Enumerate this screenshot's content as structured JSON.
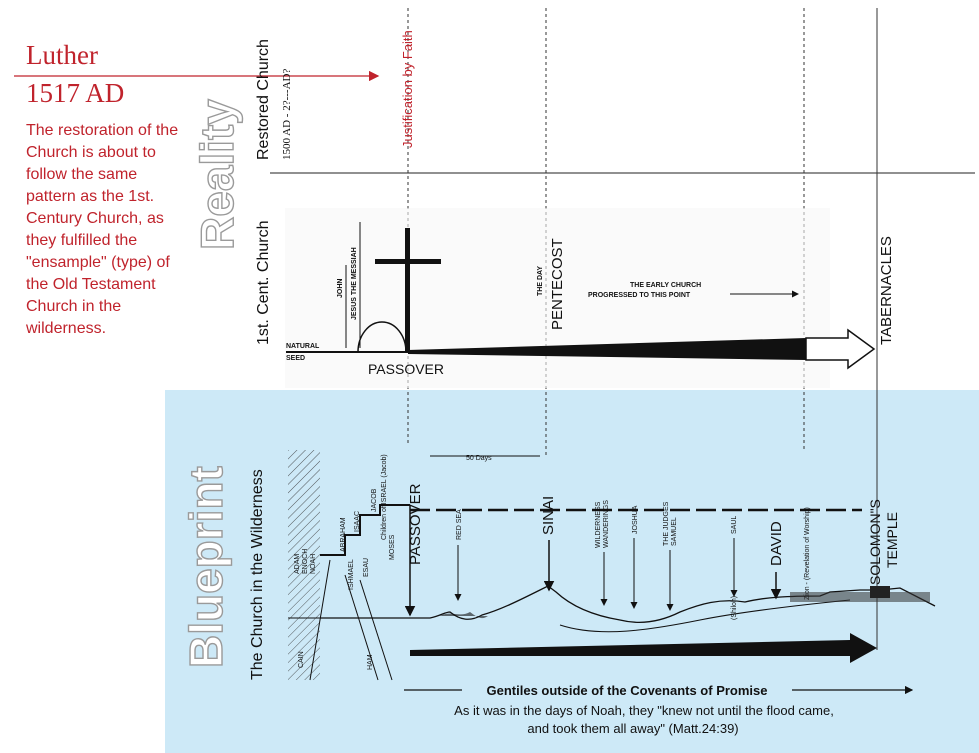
{
  "luther": {
    "name": "Luther",
    "year": "1517 AD"
  },
  "body_text": "The restoration of the Church is about to follow the same pattern as the 1st. Century Church, as they fulfilled the \"ensample\" (type) of the Old Testament Church in the wilderness.",
  "reality": {
    "heading": "Reality",
    "restored_church": "Restored Church",
    "restored_sub": "1500 AD - 2?---AD?",
    "first_cent": "1st. Cent. Church",
    "justification": "Justification by Faith",
    "natural": "NATURAL",
    "seed": "SEED",
    "john": "JOHN",
    "jesus": "JESUS THE MESSIAH",
    "passover": "PASSOVER",
    "the_day": "THE DAY",
    "pentecost": "PENTECOST",
    "early_church_1": "THE EARLY CHURCH",
    "early_church_2": "PROGRESSED TO THIS POINT",
    "tabernacles": "TABERNACLES"
  },
  "blueprint": {
    "heading": "Blueprint",
    "subtitle": "The Church in the Wilderness",
    "adam": "ADAM",
    "enoch": "ENOCH",
    "noah": "NOAH",
    "abraham": "ABRAHAM",
    "isaac": "ISAAC",
    "jacob": "JACOB",
    "ishmael": "ISHMAEL",
    "esau": "ESAU",
    "cain": "CAIN",
    "ham": "HAM",
    "children_israel": "Children of ISRAEL (Jacob)",
    "moses": "MOSES",
    "passover": "PASSOVER",
    "fifty_days": "50 Days",
    "red_sea": "RED SEA",
    "sinai": "SINAI",
    "wilderness": "WILDERNESS",
    "wanderings": "WANDERINGS",
    "joshua": "JOSHUA",
    "judges": "THE JUDGES",
    "samuel": "SAMUEL",
    "saul": "SAUL",
    "shiloh": "(Shiloh)",
    "david": "DAVID",
    "zion": "Zion - (Revelation of Worship)",
    "solomon_1": "SOLOMON\"S",
    "solomon_2": "TEMPLE"
  },
  "gentiles": {
    "title": "Gentiles outside of the Covenants of Promise",
    "line1": "As it was in the days of Noah, they \"knew not until the flood came,",
    "line2": "and took them all away\" (Matt.24:39)"
  },
  "colors": {
    "red": "#c0232c",
    "blueprint_bg": "#cde9f7",
    "ink": "#111111",
    "outline": "#9a9a9a"
  }
}
